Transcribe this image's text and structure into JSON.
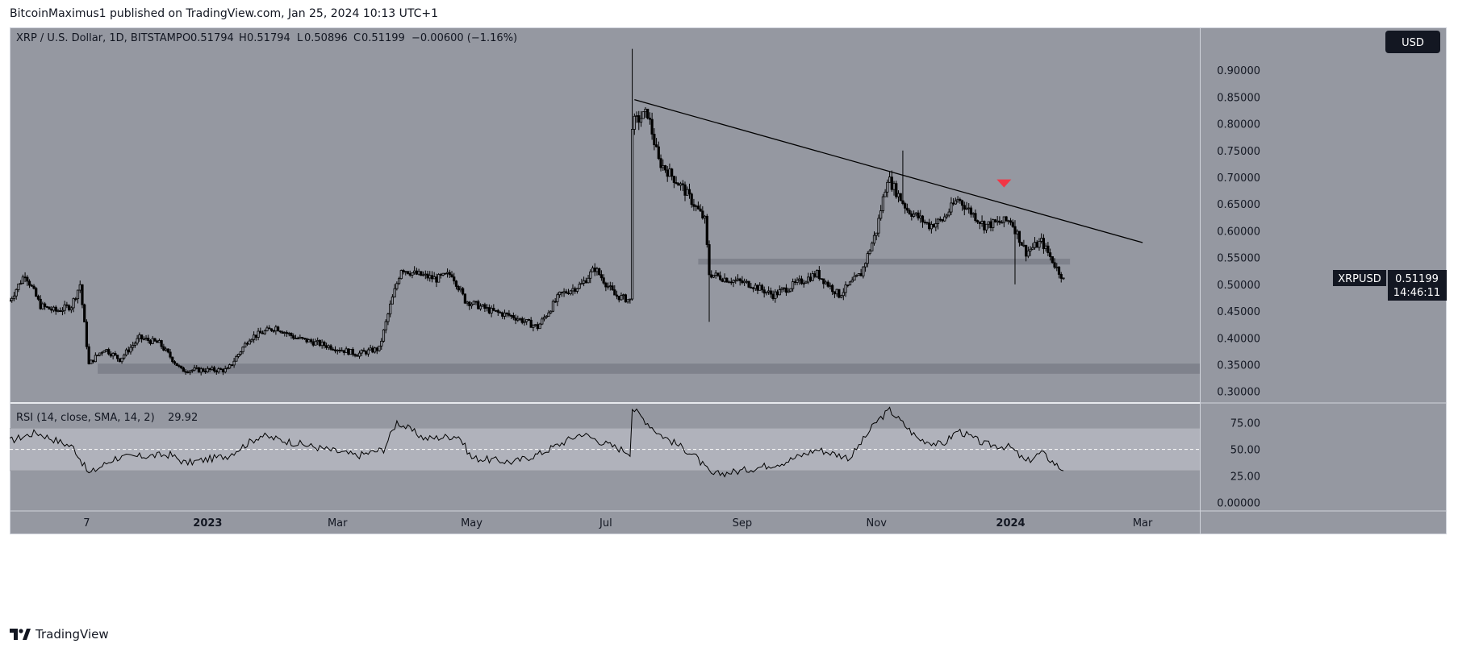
{
  "header": {
    "published": "BitcoinMaximus1 published on TradingView.com, Jan 25, 2024 10:13 UTC+1"
  },
  "legend": {
    "symbol": "XRP / U.S. Dollar, 1D, BITSTAMP",
    "o_label": "O",
    "o_value": "0.51794",
    "h_label": "H",
    "h_value": "0.51794",
    "l_label": "L",
    "l_value": "0.50896",
    "c_label": "C",
    "c_value": "0.51199",
    "change": "−0.00600 (−1.16%)"
  },
  "currency_button": "USD",
  "price_tag": {
    "symbol": "XRPUSD",
    "price": "0.51199",
    "countdown": "14:46:11"
  },
  "rsi_legend": {
    "label": "RSI (14, close, SMA, 14, 2)",
    "value": "29.92"
  },
  "footer": {
    "brand": "TradingView"
  },
  "colors": {
    "pane_bg": "#9598a1",
    "band": "#b2b5be",
    "candle": "#000000",
    "zone": "#787b86",
    "marker": "#f23645",
    "text": "#131722"
  },
  "chart_data": [
    {
      "type": "candlestick",
      "title": "XRP / U.S. Dollar, 1D, BITSTAMP",
      "ylim": [
        0.28,
        0.98
      ],
      "yticks": [
        "0.90000",
        "0.85000",
        "0.80000",
        "0.75000",
        "0.70000",
        "0.65000",
        "0.60000",
        "0.55000",
        "0.50000",
        "0.45000",
        "0.40000",
        "0.35000",
        "0.30000"
      ],
      "ytick_values": [
        0.9,
        0.85,
        0.8,
        0.75,
        0.7,
        0.65,
        0.6,
        0.55,
        0.5,
        0.45,
        0.4,
        0.35,
        0.3
      ],
      "xticks": [
        "7",
        "2023",
        "Mar",
        "May",
        "Jul",
        "Sep",
        "Nov",
        "2024",
        "Mar"
      ],
      "xtick_dates": [
        "2022-11-07",
        "2023-01-01",
        "2023-03-01",
        "2023-05-01",
        "2023-07-01",
        "2023-09-01",
        "2023-11-01",
        "2024-01-01",
        "2024-03-01"
      ],
      "x_range": [
        "2022-10-03",
        "2024-03-27"
      ],
      "price_path": [
        [
          "2022-10-03",
          0.47
        ],
        [
          "2022-10-10",
          0.52
        ],
        [
          "2022-10-17",
          0.46
        ],
        [
          "2022-10-24",
          0.45
        ],
        [
          "2022-10-31",
          0.46
        ],
        [
          "2022-11-04",
          0.5
        ],
        [
          "2022-11-08",
          0.35
        ],
        [
          "2022-11-10",
          0.36
        ],
        [
          "2022-11-15",
          0.38
        ],
        [
          "2022-11-22",
          0.36
        ],
        [
          "2022-12-01",
          0.4
        ],
        [
          "2022-12-10",
          0.39
        ],
        [
          "2022-12-20",
          0.34
        ],
        [
          "2023-01-01",
          0.34
        ],
        [
          "2023-01-10",
          0.34
        ],
        [
          "2023-01-20",
          0.4
        ],
        [
          "2023-02-01",
          0.42
        ],
        [
          "2023-02-10",
          0.4
        ],
        [
          "2023-02-20",
          0.39
        ],
        [
          "2023-03-01",
          0.38
        ],
        [
          "2023-03-10",
          0.37
        ],
        [
          "2023-03-20",
          0.38
        ],
        [
          "2023-03-25",
          0.46
        ],
        [
          "2023-03-30",
          0.53
        ],
        [
          "2023-04-05",
          0.52
        ],
        [
          "2023-04-15",
          0.51
        ],
        [
          "2023-04-22",
          0.52
        ],
        [
          "2023-04-28",
          0.47
        ],
        [
          "2023-05-10",
          0.45
        ],
        [
          "2023-05-20",
          0.44
        ],
        [
          "2023-05-31",
          0.42
        ],
        [
          "2023-06-10",
          0.48
        ],
        [
          "2023-06-20",
          0.5
        ],
        [
          "2023-06-26",
          0.53
        ],
        [
          "2023-07-05",
          0.48
        ],
        [
          "2023-07-12",
          0.47
        ],
        [
          "2023-07-13",
          0.8
        ],
        [
          "2023-07-20",
          0.82
        ],
        [
          "2023-07-25",
          0.73
        ],
        [
          "2023-08-05",
          0.68
        ],
        [
          "2023-08-15",
          0.62
        ],
        [
          "2023-08-17",
          0.52
        ],
        [
          "2023-08-25",
          0.51
        ],
        [
          "2023-09-05",
          0.5
        ],
        [
          "2023-09-15",
          0.48
        ],
        [
          "2023-09-25",
          0.5
        ],
        [
          "2023-10-05",
          0.52
        ],
        [
          "2023-10-15",
          0.48
        ],
        [
          "2023-10-25",
          0.52
        ],
        [
          "2023-11-01",
          0.6
        ],
        [
          "2023-11-06",
          0.7
        ],
        [
          "2023-11-15",
          0.64
        ],
        [
          "2023-11-25",
          0.61
        ],
        [
          "2023-12-01",
          0.62
        ],
        [
          "2023-12-08",
          0.66
        ],
        [
          "2023-12-20",
          0.61
        ],
        [
          "2024-01-01",
          0.62
        ],
        [
          "2024-01-08",
          0.56
        ],
        [
          "2024-01-15",
          0.58
        ],
        [
          "2024-01-22",
          0.53
        ],
        [
          "2024-01-25",
          0.51199
        ]
      ],
      "wick_spikes": [
        {
          "date": "2023-07-13",
          "low": 0.47,
          "high": 0.94
        },
        {
          "date": "2023-08-17",
          "low": 0.43,
          "high": 0.54
        },
        {
          "date": "2023-11-13",
          "low": 0.66,
          "high": 0.75
        },
        {
          "date": "2024-01-03",
          "low": 0.5,
          "high": 0.62
        }
      ],
      "horizontal_zones": [
        {
          "from": 0.333,
          "to": 0.352
        },
        {
          "from": 0.537,
          "to": 0.548
        }
      ],
      "trendline": {
        "start": [
          "2023-07-14",
          0.845
        ],
        "end": [
          "2024-03-01",
          0.578
        ]
      },
      "marker": {
        "date": "2023-12-29",
        "price": 0.66,
        "shape": "triangle-down"
      },
      "last_price": 0.51199
    },
    {
      "type": "line",
      "title": "RSI (14, close, SMA, 14, 2)",
      "ylim": [
        -8,
        93
      ],
      "yticks": [
        "75.00",
        "50.00",
        "25.00",
        "0.00000"
      ],
      "ytick_values": [
        75,
        50,
        25,
        0
      ],
      "band": [
        30,
        70
      ],
      "midline": 50,
      "values_path": [
        [
          "2022-10-03",
          58
        ],
        [
          "2022-10-15",
          66
        ],
        [
          "2022-11-01",
          52
        ],
        [
          "2022-11-08",
          27
        ],
        [
          "2022-11-20",
          42
        ],
        [
          "2022-12-15",
          45
        ],
        [
          "2022-12-22",
          37
        ],
        [
          "2023-01-10",
          44
        ],
        [
          "2023-01-25",
          63
        ],
        [
          "2023-02-10",
          56
        ],
        [
          "2023-03-10",
          44
        ],
        [
          "2023-03-22",
          50
        ],
        [
          "2023-03-28",
          76
        ],
        [
          "2023-04-10",
          60
        ],
        [
          "2023-04-25",
          63
        ],
        [
          "2023-05-01",
          42
        ],
        [
          "2023-05-20",
          38
        ],
        [
          "2023-06-01",
          46
        ],
        [
          "2023-06-20",
          65
        ],
        [
          "2023-06-30",
          56
        ],
        [
          "2023-07-12",
          47
        ],
        [
          "2023-07-13",
          89
        ],
        [
          "2023-07-25",
          65
        ],
        [
          "2023-08-10",
          45
        ],
        [
          "2023-08-18",
          26
        ],
        [
          "2023-09-01",
          30
        ],
        [
          "2023-09-20",
          38
        ],
        [
          "2023-10-05",
          50
        ],
        [
          "2023-10-20",
          42
        ],
        [
          "2023-11-01",
          76
        ],
        [
          "2023-11-07",
          87
        ],
        [
          "2023-11-20",
          60
        ],
        [
          "2023-12-01",
          54
        ],
        [
          "2023-12-08",
          68
        ],
        [
          "2023-12-20",
          55
        ],
        [
          "2024-01-01",
          52
        ],
        [
          "2024-01-08",
          38
        ],
        [
          "2024-01-15",
          47
        ],
        [
          "2024-01-25",
          29.92
        ]
      ]
    }
  ]
}
